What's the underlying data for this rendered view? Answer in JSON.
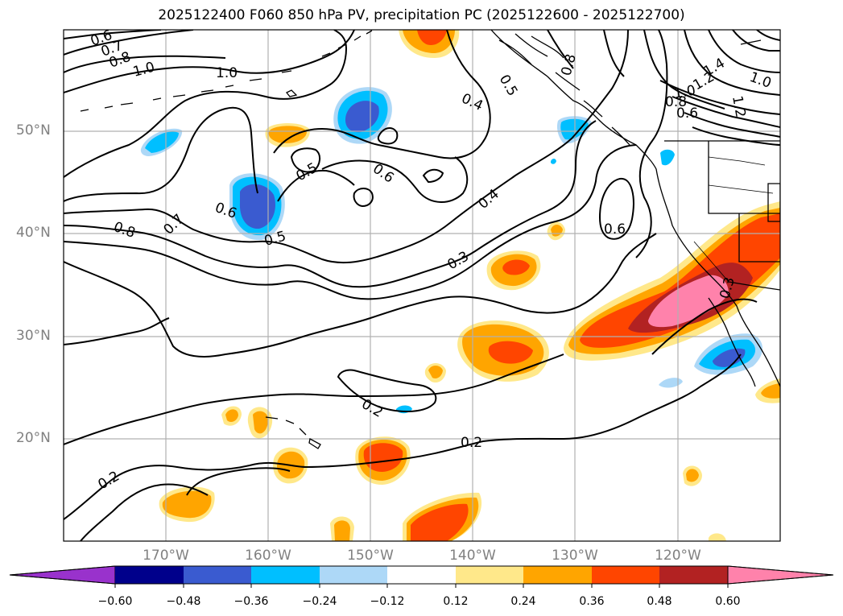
{
  "title": "2025122400 F060 850 hPa PV, precipitation PC (2025122600 - 2025122700)",
  "lat_labels": [
    "50°N",
    "40°N",
    "30°N",
    "20°N"
  ],
  "lon_labels": [
    "170°W",
    "160°W",
    "150°W",
    "140°W",
    "130°W",
    "120°W"
  ],
  "colorbar": {
    "ticks": [
      "−0.60",
      "−0.48",
      "−0.36",
      "−0.24",
      "−0.12",
      "0.12",
      "0.24",
      "0.36",
      "0.48",
      "0.60"
    ],
    "colors": [
      "#9932cc",
      "#00008b",
      "#3a5bd0",
      "#00bfff",
      "#add8f7",
      "#ffffff",
      "#ffe88a",
      "#ffa500",
      "#ff4500",
      "#b22222",
      "#ff82ab"
    ]
  },
  "contour_labels": [
    "0.6",
    "0.7",
    "0.8",
    "1.0",
    "1.0",
    "0.4",
    "0.5",
    "0.8",
    "1.4",
    "1.2",
    "1.0",
    "1.0",
    "0.8",
    "0.6",
    "1.2",
    "0.6",
    "0.5",
    "0.6",
    "0.7",
    "0.8",
    "0.5",
    "0.4",
    "0.3",
    "0.6",
    "0.3",
    "0.2",
    "0.2",
    "0.2"
  ]
}
